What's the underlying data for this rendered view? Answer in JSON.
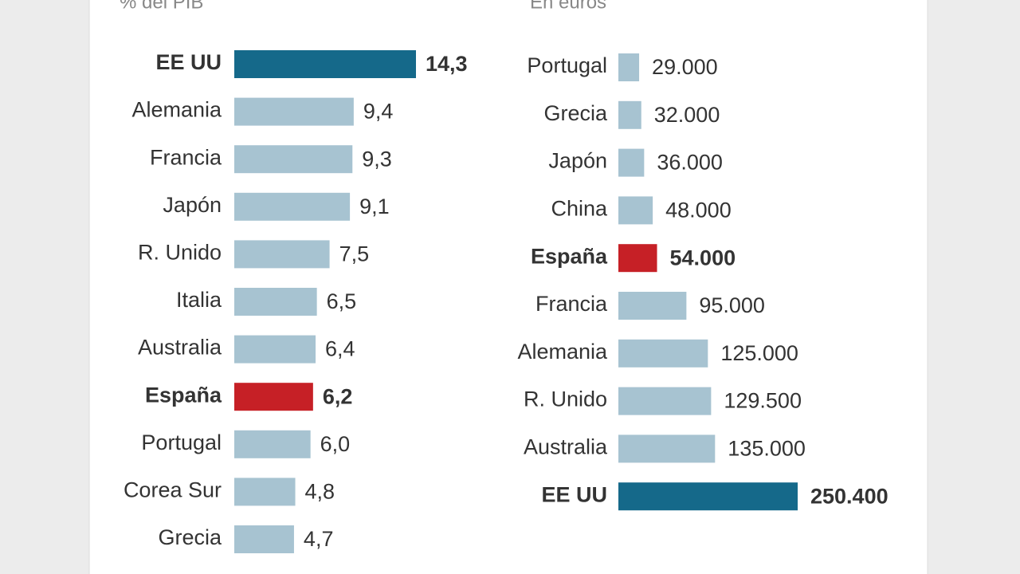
{
  "chart_data": [
    {
      "type": "bar",
      "orientation": "horizontal",
      "subtitle": "% del PIB",
      "categories": [
        "EE UU",
        "Alemania",
        "Francia",
        "Japón",
        "R. Unido",
        "Italia",
        "Australia",
        "España",
        "Portugal",
        "Corea Sur",
        "Grecia"
      ],
      "values": [
        14.3,
        9.4,
        9.3,
        9.1,
        7.5,
        6.5,
        6.4,
        6.2,
        6.0,
        4.8,
        4.7
      ],
      "value_labels": [
        "14,3",
        "9,4",
        "9,3",
        "9,1",
        "7,5",
        "6,5",
        "6,4",
        "6,2",
        "6,0",
        "4,8",
        "4,7"
      ],
      "color": "#a7c3d1",
      "colors": [
        "#15698a",
        "#a7c3d1",
        "#a7c3d1",
        "#a7c3d1",
        "#a7c3d1",
        "#a7c3d1",
        "#a7c3d1",
        "#c62026",
        "#a7c3d1",
        "#a7c3d1",
        "#a7c3d1"
      ]
    },
    {
      "type": "bar",
      "orientation": "horizontal",
      "subtitle": "En euros",
      "categories": [
        "Portugal",
        "Grecia",
        "Japón",
        "China",
        "España",
        "Francia",
        "Alemania",
        "R. Unido",
        "Australia",
        "EE UU"
      ],
      "values": [
        29000,
        32000,
        36000,
        48000,
        54000,
        95000,
        125000,
        129500,
        135000,
        250400
      ],
      "value_labels": [
        "29.000",
        "32.000",
        "36.000",
        "48.000",
        "54.000",
        "95.000",
        "125.000",
        "129.500",
        "135.000",
        "250.400"
      ],
      "color": "#a7c3d1",
      "colors": [
        "#a7c3d1",
        "#a7c3d1",
        "#a7c3d1",
        "#a7c3d1",
        "#c62026",
        "#a7c3d1",
        "#a7c3d1",
        "#a7c3d1",
        "#a7c3d1",
        "#15698a"
      ]
    }
  ]
}
